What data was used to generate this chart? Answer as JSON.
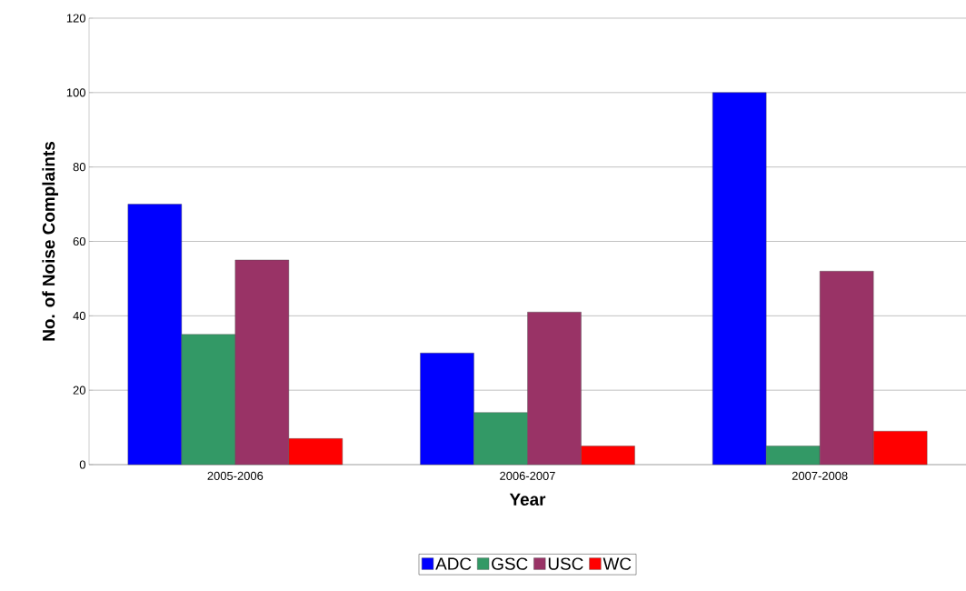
{
  "chart_data": {
    "type": "bar",
    "xlabel": "Year",
    "ylabel": "No. of Noise Complaints",
    "categories": [
      "2005-2006",
      "2006-2007",
      "2007-2008"
    ],
    "series": [
      {
        "name": "ADC",
        "color": "#0000ff",
        "values": [
          70,
          30,
          100
        ]
      },
      {
        "name": "GSC",
        "color": "#339966",
        "values": [
          35,
          14,
          5
        ]
      },
      {
        "name": "USC",
        "color": "#993366",
        "values": [
          55,
          41,
          52
        ]
      },
      {
        "name": "WC",
        "color": "#ff0000",
        "values": [
          7,
          5,
          9
        ]
      }
    ],
    "ylim": [
      0,
      120
    ],
    "yticks": [
      0,
      20,
      40,
      60,
      80,
      100,
      120
    ],
    "grid": "y",
    "legend": "bottom"
  }
}
